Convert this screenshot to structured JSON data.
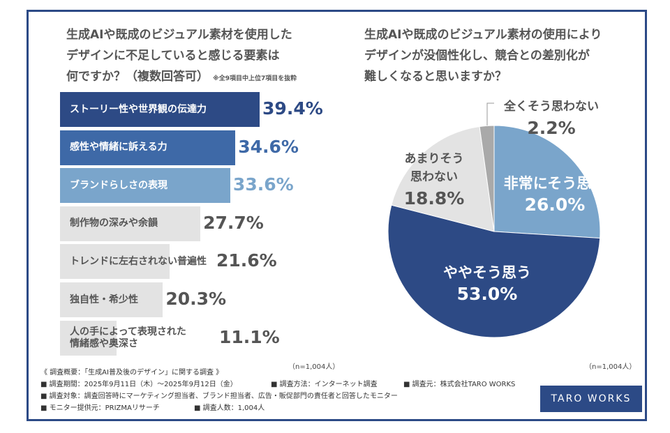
{
  "chart_data": [
    {
      "type": "bar",
      "orientation": "horizontal",
      "title": "生成AIや既成のビジュアル素材を使用したデザインに不足していると感じる要素は何ですか？（複数回答可）",
      "title_lines": [
        "生成AIや既成のビジュアル素材を使用した",
        "デザインに不足していると感じる要素は",
        "何ですか？（複数回答可）"
      ],
      "note": "※全9項目中上位7項目を抜粋",
      "categories": [
        "ストーリー性や世界観の伝達力",
        "感性や情緒に訴える力",
        "ブランドらしさの表現",
        "制作物の深みや余韻",
        "トレンドに左右されない普遍性",
        "独自性・希少性",
        "人の手によって表現された情緒感や奥深さ"
      ],
      "category_lines": [
        [
          "ストーリー性や世界観の伝達力"
        ],
        [
          "感性や情緒に訴える力"
        ],
        [
          "ブランドらしさの表現"
        ],
        [
          "制作物の深みや余韻"
        ],
        [
          "トレンドに左右されない普遍性"
        ],
        [
          "独自性・希少性"
        ],
        [
          "人の手によって表現された",
          "情緒感や奥深さ"
        ]
      ],
      "values": [
        39.4,
        34.6,
        33.6,
        27.7,
        21.6,
        20.3,
        11.1
      ],
      "value_labels": [
        "39.4%",
        "34.6%",
        "33.6%",
        "27.7%",
        "21.6%",
        "20.3%",
        "11.1%"
      ],
      "colors": [
        "#2d4a85",
        "#3e69a7",
        "#7aa5cb",
        "#e3e3e3",
        "#e3e3e3",
        "#e3e3e3",
        "#e3e3e3"
      ],
      "label_colors": [
        "#ffffff",
        "#ffffff",
        "#ffffff",
        "#555555",
        "#555555",
        "#555555",
        "#555555"
      ],
      "value_colors": [
        "#2d4a85",
        "#3e69a7",
        "#7aa5cb",
        "#555555",
        "#555555",
        "#555555",
        "#555555"
      ],
      "n": "（n=1,004人）"
    },
    {
      "type": "pie",
      "title": "生成AIや既成のビジュアル素材の使用によりデザインが没個性化し、競合との差別化が難しくなると思いますか？",
      "title_lines": [
        "生成AIや既成のビジュアル素材の使用により",
        "デザインが没個性化し、競合との差別化が",
        "難しくなると思いますか？"
      ],
      "slices": [
        {
          "label": "非常にそう思う",
          "value": 26.0,
          "value_label": "26.0%",
          "color": "#7aa5cb"
        },
        {
          "label": "ややそう思う",
          "value": 53.0,
          "value_label": "53.0%",
          "color": "#2d4a85"
        },
        {
          "label": "あまりそう思わない",
          "label_lines": [
            "あまりそう",
            "思わない"
          ],
          "value": 18.8,
          "value_label": "18.8%",
          "color": "#e3e3e3"
        },
        {
          "label": "全くそう思わない",
          "value": 2.2,
          "value_label": "2.2%",
          "color": "#a9a9a9"
        }
      ],
      "n": "（n=1,004人）"
    }
  ],
  "survey": {
    "title": "《 調査概要：「生成AI普及後のデザイン」に関する調査 》",
    "period": "■ 調査期間：2025年9月11日（木）～2025年9月12日（金）",
    "method": "■ 調査方法：インターネット調査",
    "source": "■ 調査元：株式会社TARO WORKS",
    "target": "■ 調査対象：調査回答時にマーケティング担当者、ブランド担当者、広告・販促部門の責任者と回答したモニター",
    "provider": "■ モニター提供元：PRIZMAリサーチ",
    "count": "■ 調査人数：1,004人"
  },
  "logo": "TARO WORKS"
}
